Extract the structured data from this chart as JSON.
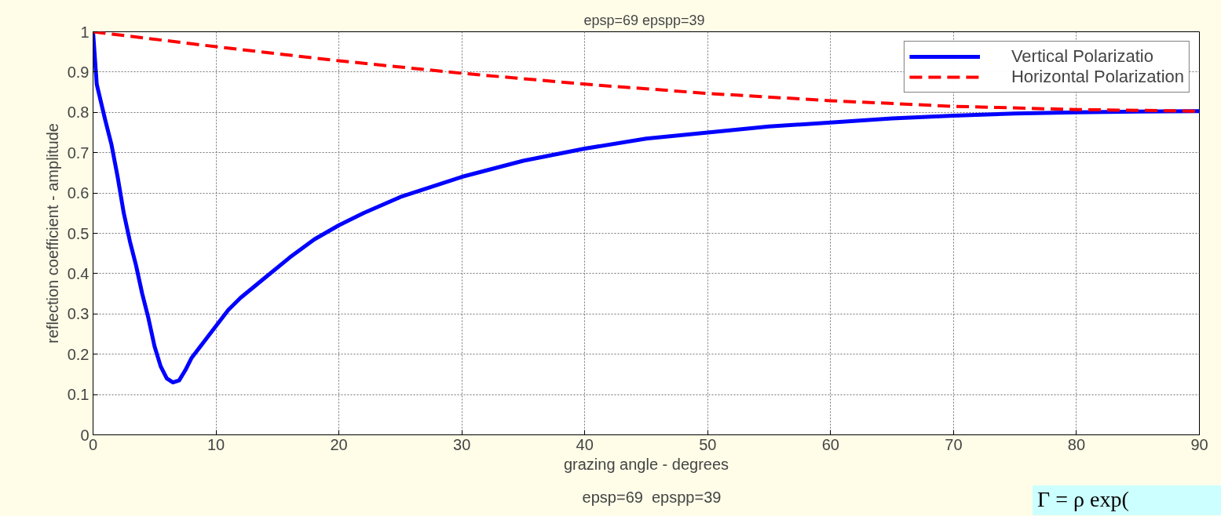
{
  "chart_data": {
    "type": "line",
    "title": "epsp=69  epspp=39",
    "xlabel": "grazing angle - degrees",
    "ylabel": "reflection coefficient - amplitude",
    "annotations": [
      "epsp=69  epspp=39",
      "Γ = ρ exp("
    ],
    "xlim": [
      0,
      90
    ],
    "xticks": [
      0,
      10,
      20,
      30,
      40,
      50,
      60,
      70,
      80,
      90
    ],
    "ylim": [
      0,
      1
    ],
    "yticks": [
      0,
      0.1,
      0.2,
      0.3,
      0.4,
      0.5,
      0.6,
      0.7,
      0.8,
      0.9,
      1
    ],
    "grid": true,
    "legend": "top right",
    "series": [
      {
        "name": "Vertical Polarizatio",
        "color": "#0000ff",
        "line_style": "solid",
        "x": [
          0,
          0.3,
          1,
          1.5,
          2,
          2.5,
          3,
          3.5,
          4,
          4.5,
          5,
          5.5,
          6,
          6.5,
          7,
          7.5,
          8,
          9,
          10,
          11,
          12,
          14,
          16,
          18,
          20,
          22,
          25,
          30,
          35,
          40,
          45,
          50,
          55,
          60,
          65,
          70,
          75,
          80,
          85,
          90
        ],
        "values": [
          1.0,
          0.87,
          0.78,
          0.72,
          0.64,
          0.55,
          0.48,
          0.42,
          0.35,
          0.29,
          0.22,
          0.17,
          0.14,
          0.13,
          0.135,
          0.16,
          0.19,
          0.23,
          0.27,
          0.31,
          0.34,
          0.39,
          0.44,
          0.485,
          0.52,
          0.55,
          0.59,
          0.64,
          0.68,
          0.71,
          0.735,
          0.75,
          0.765,
          0.775,
          0.785,
          0.792,
          0.797,
          0.8,
          0.802,
          0.803
        ]
      },
      {
        "name": "Horizontal Polarization",
        "color": "#ff0000",
        "line_style": "dashed",
        "x": [
          0,
          10,
          20,
          30,
          40,
          50,
          60,
          70,
          80,
          90
        ],
        "values": [
          1.0,
          0.963,
          0.928,
          0.897,
          0.87,
          0.847,
          0.829,
          0.815,
          0.807,
          0.803
        ]
      }
    ]
  }
}
